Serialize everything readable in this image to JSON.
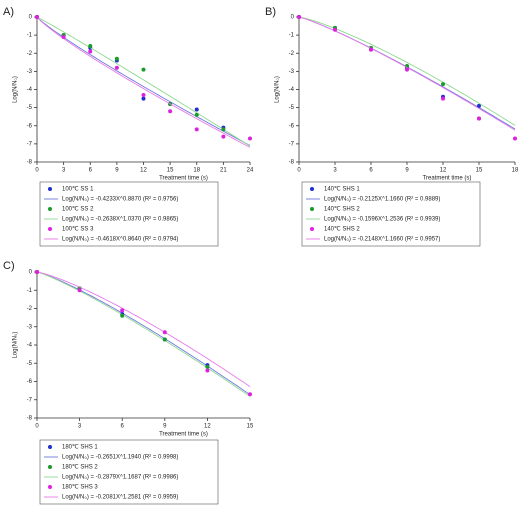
{
  "chart_data": [
    {
      "type": "scatter",
      "panel": "A)",
      "x_label": "Treatment time (s)",
      "y_label": "Log(N/N₀)",
      "x": [
        0,
        3,
        6,
        9,
        12,
        15,
        18,
        21,
        24
      ],
      "xlim": [
        0,
        24
      ],
      "xticks": [
        0,
        3,
        6,
        9,
        12,
        15,
        18,
        21,
        24
      ],
      "ylim": [
        -8,
        0
      ],
      "yticks": [
        0,
        -1,
        -2,
        -3,
        -4,
        -5,
        -6,
        -7,
        -8
      ],
      "series": [
        {
          "name": "100℃ SS 1",
          "color": "#1f2fd0",
          "fit_color": "#6f78e0",
          "values": [
            0,
            -1.0,
            -1.7,
            -2.4,
            -4.5,
            -4.8,
            -5.1,
            -6.1,
            null
          ],
          "fit": {
            "a": -0.4233,
            "b": 0.887,
            "label": "Log(N/N₀) = -0.4233X^0.8870 (R² = 0.9756)"
          }
        },
        {
          "name": "100℃ SS 2",
          "color": "#1c9a2a",
          "fit_color": "#8fd88f",
          "values": [
            0,
            -1.0,
            -1.6,
            -2.3,
            -2.9,
            -4.8,
            -5.4,
            -6.2,
            null
          ],
          "fit": {
            "a": -0.2638,
            "b": 1.037,
            "label": "Log(N/N₀) = -0.2638X^1.0370 (R² = 0.9865)"
          }
        },
        {
          "name": "100℃ SS 3",
          "color": "#e020e0",
          "fit_color": "#e87ae8",
          "values": [
            0,
            -1.1,
            -1.9,
            -2.8,
            -4.3,
            -5.2,
            -6.2,
            -6.6,
            -6.7
          ],
          "fit": {
            "a": -0.4618,
            "b": 0.864,
            "label": "Log(N/N₀) = -0.4618X^0.8640 (R² = 0.9794)"
          }
        }
      ]
    },
    {
      "type": "scatter",
      "panel": "B)",
      "x_label": "Treatment time (s)",
      "y_label": "Log(N/N₀)",
      "x": [
        0,
        3,
        6,
        9,
        12,
        15,
        18
      ],
      "xlim": [
        0,
        18
      ],
      "xticks": [
        0,
        3,
        6,
        9,
        12,
        15,
        18
      ],
      "ylim": [
        -8,
        0
      ],
      "yticks": [
        0,
        -1,
        -2,
        -3,
        -4,
        -5,
        -6,
        -7,
        -8
      ],
      "series": [
        {
          "name": "140℃ SHS 1",
          "color": "#1f2fd0",
          "fit_color": "#6f78e0",
          "values": [
            0,
            -0.6,
            -1.8,
            -2.8,
            -4.4,
            -4.9,
            null
          ],
          "fit": {
            "a": -0.2125,
            "b": 1.166,
            "label": "Log(N/N₀) = -0.2125X^1.1660 (R² = 0.9889)"
          }
        },
        {
          "name": "140℃ SHS 2",
          "color": "#1c9a2a",
          "fit_color": "#8fd88f",
          "values": [
            0,
            -0.6,
            -1.7,
            -2.7,
            -3.7,
            -5.6,
            null
          ],
          "fit": {
            "a": -0.1596,
            "b": 1.2536,
            "label": "Log(N/N₀) = -0.1596X^1.2536 (R² = 0.9939)"
          }
        },
        {
          "name": "140℃ SHS 2",
          "color": "#e020e0",
          "fit_color": "#e87ae8",
          "values": [
            0,
            -0.7,
            -1.8,
            -2.9,
            -4.5,
            -5.6,
            -6.7
          ],
          "fit": {
            "a": -0.2148,
            "b": 1.166,
            "label": "Log(N/N₀) = -0.2148X^1.1660 (R² = 0.9957)"
          }
        }
      ]
    },
    {
      "type": "scatter",
      "panel": "C)",
      "x_label": "Treatment time (s)",
      "y_label": "Log(N/N₀)",
      "x": [
        0,
        3,
        6,
        9,
        12,
        15
      ],
      "xlim": [
        0,
        15
      ],
      "xticks": [
        0,
        3,
        6,
        9,
        12,
        15
      ],
      "ylim": [
        -8,
        0
      ],
      "yticks": [
        0,
        -1,
        -2,
        -3,
        -4,
        -5,
        -6,
        -7,
        -8
      ],
      "series": [
        {
          "name": "180℃ SHS 1",
          "color": "#1f2fd0",
          "fit_color": "#6f78e0",
          "values": [
            0,
            -0.9,
            -2.3,
            -3.7,
            -5.1,
            null
          ],
          "fit": {
            "a": -0.2651,
            "b": 1.194,
            "label": "Log(N/N₀) = -0.2651X^1.1940 (R² = 0.9998)"
          }
        },
        {
          "name": "180℃ SHS 2",
          "color": "#1c9a2a",
          "fit_color": "#8fd88f",
          "values": [
            0,
            -0.9,
            -2.4,
            -3.7,
            -5.2,
            null
          ],
          "fit": {
            "a": -0.2879,
            "b": 1.1687,
            "label": "Log(N/N₀) = -0.2879X^1.1687 (R² = 0.9986)"
          }
        },
        {
          "name": "180℃ SHS 3",
          "color": "#e020e0",
          "fit_color": "#e87ae8",
          "values": [
            0,
            -1.0,
            -2.1,
            -3.3,
            -5.4,
            -6.7
          ],
          "fit": {
            "a": -0.2081,
            "b": 1.2581,
            "label": "Log(N/N₀) = -0.2081X^1.2581 (R² = 0.9959)"
          }
        }
      ]
    }
  ]
}
